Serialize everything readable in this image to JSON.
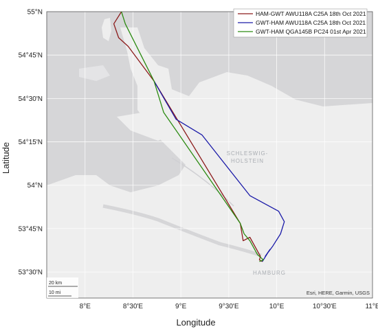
{
  "chart_data": {
    "type": "line",
    "title": "",
    "xlabel": "Longitude",
    "ylabel": "Latitude",
    "xlim": [
      7.6,
      11.0
    ],
    "ylim": [
      53.35,
      55.0
    ],
    "x_ticks": [
      {
        "value": 8.0,
        "label": "8°E"
      },
      {
        "value": 8.5,
        "label": "8°30'E"
      },
      {
        "value": 9.0,
        "label": "9°E"
      },
      {
        "value": 9.5,
        "label": "9°30'E"
      },
      {
        "value": 10.0,
        "label": "10°E"
      },
      {
        "value": 10.5,
        "label": "10°30'E"
      },
      {
        "value": 11.0,
        "label": "11°E"
      }
    ],
    "y_ticks": [
      {
        "value": 55.0,
        "label": "55°N"
      },
      {
        "value": 54.75,
        "label": "54°45'N"
      },
      {
        "value": 54.5,
        "label": "54°30'N"
      },
      {
        "value": 54.25,
        "label": "54°15'N"
      },
      {
        "value": 54.0,
        "label": "54°N"
      },
      {
        "value": 53.75,
        "label": "53°45'N"
      },
      {
        "value": 53.5,
        "label": "53°30'N"
      }
    ],
    "grid": true,
    "legend_position": "top-right",
    "series": [
      {
        "name": "HAM-GWT AWU118A C25A 18th Oct 2021",
        "color": "#8b1a1a",
        "x": [
          9.85,
          9.82,
          9.83,
          9.72,
          9.65,
          9.62,
          8.72,
          8.45,
          8.35,
          8.3,
          8.38
        ],
        "y": [
          53.56,
          53.57,
          53.59,
          53.7,
          53.68,
          53.78,
          54.6,
          54.8,
          54.85,
          54.93,
          55.0
        ]
      },
      {
        "name": "GWT-HAM AWU118A C25A 18th Oct 2021",
        "color": "#1a1aa8",
        "x": [
          8.72,
          8.95,
          9.22,
          9.72,
          10.02,
          10.08,
          10.04,
          9.96,
          9.88,
          9.93,
          9.85
        ],
        "y": [
          54.6,
          54.38,
          54.29,
          53.94,
          53.85,
          53.79,
          53.72,
          53.65,
          53.59,
          53.63,
          53.56
        ]
      },
      {
        "name": "GWT-HAM QGA145B PC24 01st Apr 2021",
        "color": "#2a8a10",
        "x": [
          8.38,
          8.42,
          8.72,
          8.82,
          9.62,
          9.66,
          9.72,
          9.8,
          9.86,
          9.82
        ],
        "y": [
          55.0,
          54.93,
          54.6,
          54.42,
          53.78,
          53.72,
          53.68,
          53.6,
          53.57,
          53.56
        ]
      }
    ]
  },
  "map_labels": {
    "region_line1": "SCHLESWIG-",
    "region_line2": "HOLSTEIN",
    "city": "HAMBURG"
  },
  "attribution": "Esri, HERE, Garmin, USGS",
  "scalebar": {
    "km": "20 km",
    "mi": "10 mi"
  },
  "colors": {
    "sea": "#d6d6d8",
    "land": "#eeeeee",
    "grid": "#ffffff"
  }
}
